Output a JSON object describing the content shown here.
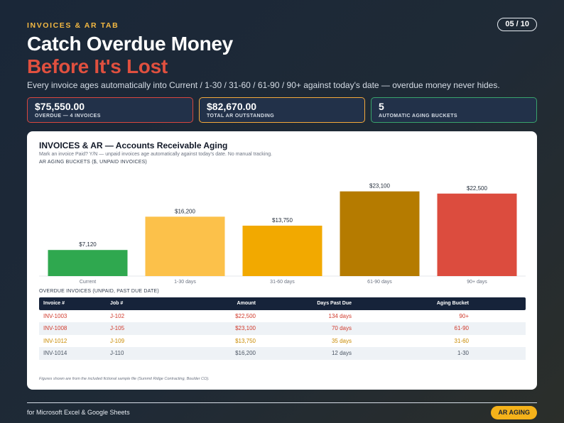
{
  "header": {
    "eyebrow": "INVOICES & AR TAB",
    "page_indicator": "05 / 10",
    "title_line1": "Catch Overdue Money",
    "title_line2": "Before It's Lost",
    "subtitle": "Every invoice ages automatically into Current / 1-30 / 31-60 / 61-90 / 90+ against today's date — overdue money never hides."
  },
  "kpis": [
    {
      "value": "$75,550.00",
      "label": "OVERDUE — 4 INVOICES",
      "border": "#d9473d"
    },
    {
      "value": "$82,670.00",
      "label": "TOTAL AR OUTSTANDING",
      "border": "#f4a93a"
    },
    {
      "value": "5",
      "label": "AUTOMATIC AGING BUCKETS",
      "border": "#39a36c"
    }
  ],
  "card": {
    "title": "INVOICES & AR — Accounts Receivable Aging",
    "subtitle": "Mark an invoice Paid? Y/N — unpaid invoices age automatically against today's date. No manual tracking.",
    "chart_title": "AR AGING BUCKETS ($, UNPAID INVOICES)",
    "table_title": "OVERDUE INVOICES (UNPAID, PAST DUE DATE)",
    "footnote": "Figures shown are from the included fictional sample file (Summit Ridge Contracting, Boulder CO)."
  },
  "chart_data": {
    "type": "bar",
    "title": "AR AGING BUCKETS ($, UNPAID INVOICES)",
    "categories": [
      "Current",
      "1-30 days",
      "31-60 days",
      "61-90 days",
      "90+ days"
    ],
    "values": [
      7120,
      16200,
      13750,
      23100,
      22500
    ],
    "value_labels": [
      "$7,120",
      "$16,200",
      "$13,750",
      "$23,100",
      "$22,500"
    ],
    "colors": [
      "#2fa84f",
      "#fcc14a",
      "#f2a900",
      "#b57b00",
      "#dc4c3e"
    ],
    "ylim": [
      0,
      24000
    ],
    "grid": false
  },
  "table": {
    "columns": [
      "Invoice #",
      "Job #",
      "Amount",
      "Days Past Due",
      "Aging Bucket"
    ],
    "rows": [
      {
        "cells": [
          "INV-1003",
          "J-102",
          "$22,500",
          "134 days",
          "90+"
        ],
        "color": "#d0392b"
      },
      {
        "cells": [
          "INV-1008",
          "J-105",
          "$23,100",
          "70 days",
          "61-90"
        ],
        "color": "#d0392b"
      },
      {
        "cells": [
          "INV-1012",
          "J-109",
          "$13,750",
          "35 days",
          "31-60"
        ],
        "color": "#c98a00"
      },
      {
        "cells": [
          "INV-1014",
          "J-110",
          "$16,200",
          "12 days",
          "1-30"
        ],
        "color": "#4b5563"
      }
    ]
  },
  "footer": {
    "left": "for Microsoft Excel & Google Sheets",
    "tag": "AR AGING"
  }
}
